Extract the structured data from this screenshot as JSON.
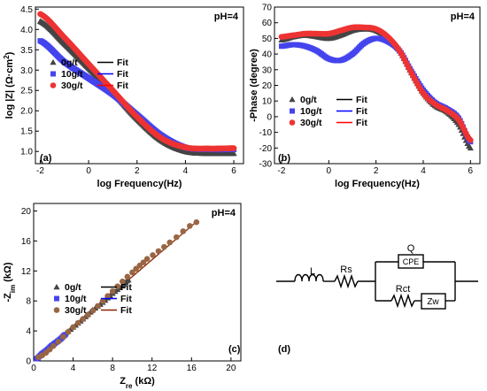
{
  "chart_data": [
    {
      "type": "scatter",
      "panel_label": "(a)",
      "annotation": "pH=4",
      "xlabel": "log Frequency(Hz)",
      "ylabel": "log |Z| (Ω·cm²)",
      "xlim": [
        -2.2,
        6.4
      ],
      "ylim": [
        0.7,
        4.55
      ],
      "xticks": [
        "-2",
        "0",
        "2",
        "4",
        "6"
      ],
      "xtick_values": [
        -2,
        0,
        2,
        4,
        6
      ],
      "yticks": [
        "1.0",
        "1.5",
        "2.0",
        "2.5",
        "3.0",
        "3.5",
        "4.0",
        "4.5"
      ],
      "ytick_values": [
        1.0,
        1.5,
        2.0,
        2.5,
        3.0,
        3.5,
        4.0,
        4.5
      ],
      "legend_position": "center-right",
      "fit_label": "Fit",
      "series": [
        {
          "name": "0g/t",
          "marker": "triangle",
          "color": "#444444",
          "fit_color": "#000000",
          "x": [
            -2,
            -1,
            0,
            1,
            2,
            3,
            4,
            5,
            6
          ],
          "y": [
            4.2,
            3.65,
            3.05,
            2.45,
            1.8,
            1.27,
            1.0,
            0.95,
            0.95
          ]
        },
        {
          "name": "10g/t",
          "marker": "square",
          "color": "#4444ee",
          "fit_color": "#0000ff",
          "x": [
            -2,
            -1,
            0,
            1,
            2,
            3,
            4,
            5,
            6
          ],
          "y": [
            3.72,
            3.2,
            2.8,
            2.4,
            1.9,
            1.4,
            1.1,
            1.05,
            1.05
          ]
        },
        {
          "name": "30g/t",
          "marker": "circle",
          "color": "#ee3333",
          "fit_color": "#ff0000",
          "x": [
            -2,
            -1,
            0,
            1,
            2,
            3,
            4,
            5,
            6
          ],
          "y": [
            4.38,
            3.8,
            3.15,
            2.5,
            1.85,
            1.33,
            1.1,
            1.07,
            1.08
          ]
        }
      ]
    },
    {
      "type": "scatter",
      "panel_label": "(b)",
      "annotation": "pH=4",
      "xlabel": "log Frequency(Hz)",
      "ylabel": "-Phase (degree)",
      "xlim": [
        -2.3,
        6.4
      ],
      "ylim": [
        -30,
        70
      ],
      "xticks": [
        "-2",
        "0",
        "2",
        "4",
        "6"
      ],
      "xtick_values": [
        -2,
        0,
        2,
        4,
        6
      ],
      "yticks": [
        "-30",
        "-20",
        "-10",
        "0",
        "10",
        "20",
        "30",
        "40",
        "50",
        "60",
        "70"
      ],
      "ytick_values": [
        -30,
        -20,
        -10,
        0,
        10,
        20,
        30,
        40,
        50,
        60,
        70
      ],
      "legend_position": "center-left",
      "fit_label": "Fit",
      "series": [
        {
          "name": "0g/t",
          "marker": "triangle",
          "color": "#444444",
          "fit_color": "#000000",
          "x": [
            -2,
            -1.5,
            -1,
            -0.5,
            0,
            0.5,
            1,
            1.5,
            2,
            2.5,
            3,
            3.5,
            4,
            4.5,
            5,
            5.5,
            6
          ],
          "y": [
            49,
            51,
            52,
            51,
            50,
            52,
            55,
            56,
            55,
            50,
            42,
            28,
            15,
            7,
            3,
            -5,
            -20
          ]
        },
        {
          "name": "10g/t",
          "marker": "square",
          "color": "#4444ee",
          "fit_color": "#0000ff",
          "x": [
            -2,
            -1.5,
            -1,
            -0.5,
            0,
            0.5,
            1,
            1.5,
            2,
            2.5,
            3,
            3.5,
            4,
            4.5,
            5,
            5.5,
            6
          ],
          "y": [
            45,
            46,
            45,
            42,
            37,
            36,
            40,
            47,
            50,
            48,
            42,
            29,
            17,
            9,
            5,
            -1,
            -16
          ]
        },
        {
          "name": "30g/t",
          "marker": "circle",
          "color": "#ee3333",
          "fit_color": "#ff0000",
          "x": [
            -2,
            -1.5,
            -1,
            -0.5,
            0,
            0.5,
            1,
            1.5,
            2,
            2.5,
            3,
            3.5,
            4,
            4.5,
            5,
            5.5,
            6
          ],
          "y": [
            51,
            52,
            53,
            53,
            53,
            55,
            57,
            57,
            56,
            51,
            42,
            28,
            15,
            8,
            4,
            -2,
            -15
          ]
        }
      ]
    },
    {
      "type": "scatter",
      "panel_label": "(c)",
      "annotation": "pH=4",
      "xlabel": "Z_re (kΩ)",
      "ylabel": "-Z_im (kΩ)",
      "xlim": [
        0,
        21
      ],
      "ylim": [
        0,
        21
      ],
      "xticks": [
        "0",
        "4",
        "8",
        "12",
        "16",
        "20"
      ],
      "xtick_values": [
        0,
        4,
        8,
        12,
        16,
        20
      ],
      "yticks": [
        "0",
        "4",
        "8",
        "12",
        "16",
        "20"
      ],
      "ytick_values": [
        0,
        4,
        8,
        12,
        16,
        20
      ],
      "legend_position": "center-right",
      "fit_label": "Fit",
      "series": [
        {
          "name": "0g/t",
          "marker": "triangle",
          "color": "#444444",
          "fit_color": "#000000",
          "x": [
            0.5,
            1.2,
            2.0,
            3.0,
            4.0,
            5.0,
            6.0,
            7.0,
            8.0,
            9.0,
            9.6
          ],
          "y": [
            0.6,
            1.4,
            2.3,
            3.4,
            4.5,
            5.6,
            6.8,
            7.8,
            9.0,
            10.0,
            10.8
          ]
        },
        {
          "name": "10g/t",
          "marker": "square",
          "color": "#4444ee",
          "fit_color": "#0000ff",
          "x": [
            0.3,
            0.8,
            1.3,
            1.8,
            2.3,
            2.8,
            3.2
          ],
          "y": [
            0.3,
            0.9,
            1.4,
            2.0,
            2.5,
            3.0,
            3.5
          ]
        },
        {
          "name": "30g/t",
          "marker": "circle",
          "color": "#996644",
          "fit_color": "#8b2500",
          "x": [
            0.5,
            2.0,
            4.0,
            6.0,
            8.0,
            10.0,
            11.5,
            13.8,
            16.5
          ],
          "y": [
            0.5,
            2.0,
            4.5,
            6.7,
            9.3,
            11.8,
            13.6,
            15.8,
            18.5
          ]
        }
      ]
    }
  ],
  "circuit": {
    "panel_label": "(d)",
    "inductor": "L",
    "resistor_s": "Rs",
    "cpe_symbol": "Q",
    "cpe_box": "CPE",
    "resistor_ct": "Rct",
    "warburg": "Zw"
  }
}
